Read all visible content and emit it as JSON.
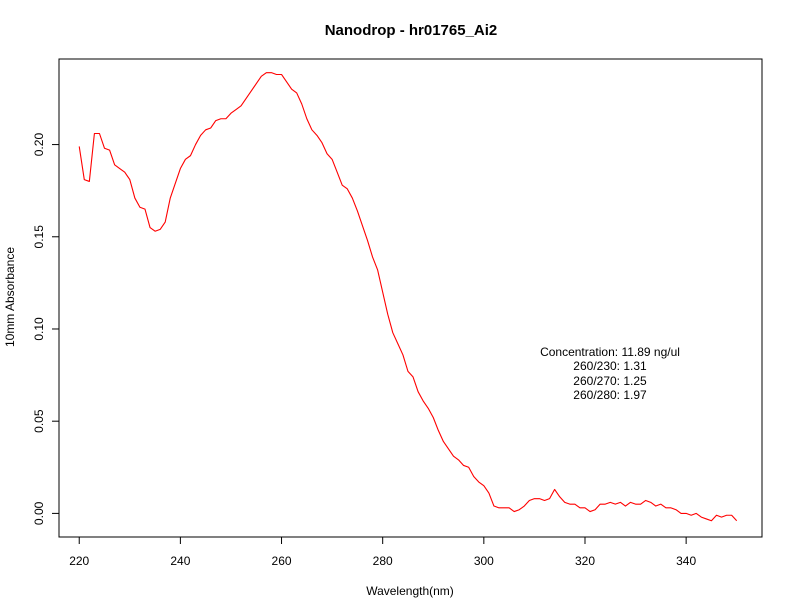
{
  "chart_data": {
    "type": "line",
    "title": "Nanodrop - hr01765_Ai2",
    "xlabel": "Wavelength(nm)",
    "ylabel": "10mm Absorbance",
    "xlim": [
      216,
      355
    ],
    "ylim": [
      -0.0128,
      0.2464
    ],
    "x_ticks": [
      220,
      240,
      260,
      280,
      300,
      320,
      340
    ],
    "x_tick_labels": [
      "220",
      "240",
      "260",
      "280",
      "300",
      "320",
      "340"
    ],
    "y_ticks": [
      0.0,
      0.05,
      0.1,
      0.15,
      0.2
    ],
    "y_tick_labels": [
      "0.00",
      "0.05",
      "0.10",
      "0.15",
      "0.20"
    ],
    "grid": false,
    "series": [
      {
        "color": "#ff0000",
        "x": [
          220,
          221,
          222,
          223,
          224,
          225,
          226,
          227,
          228,
          229,
          230,
          231,
          232,
          233,
          234,
          235,
          236,
          237,
          238,
          239,
          240,
          241,
          242,
          243,
          244,
          245,
          246,
          247,
          248,
          249,
          250,
          251,
          252,
          253,
          254,
          255,
          256,
          257,
          258,
          259,
          260,
          261,
          262,
          263,
          264,
          265,
          266,
          267,
          268,
          269,
          270,
          271,
          272,
          273,
          274,
          275,
          276,
          277,
          278,
          279,
          280,
          281,
          282,
          283,
          284,
          285,
          286,
          287,
          288,
          289,
          290,
          291,
          292,
          293,
          294,
          295,
          296,
          297,
          298,
          299,
          300,
          301,
          302,
          303,
          304,
          305,
          306,
          307,
          308,
          309,
          310,
          311,
          312,
          313,
          314,
          315,
          316,
          317,
          318,
          319,
          320,
          321,
          322,
          323,
          324,
          325,
          326,
          327,
          328,
          329,
          330,
          331,
          332,
          333,
          334,
          335,
          336,
          337,
          338,
          339,
          340,
          341,
          342,
          343,
          344,
          345,
          346,
          347,
          348,
          349,
          350
        ],
        "values": [
          0.199,
          0.181,
          0.18,
          0.206,
          0.206,
          0.198,
          0.197,
          0.189,
          0.187,
          0.185,
          0.181,
          0.171,
          0.166,
          0.165,
          0.155,
          0.153,
          0.154,
          0.158,
          0.171,
          0.179,
          0.187,
          0.192,
          0.194,
          0.2,
          0.205,
          0.208,
          0.209,
          0.213,
          0.214,
          0.214,
          0.217,
          0.219,
          0.221,
          0.225,
          0.229,
          0.233,
          0.237,
          0.239,
          0.239,
          0.238,
          0.238,
          0.234,
          0.23,
          0.228,
          0.222,
          0.214,
          0.208,
          0.205,
          0.201,
          0.195,
          0.192,
          0.185,
          0.178,
          0.176,
          0.171,
          0.164,
          0.156,
          0.148,
          0.139,
          0.132,
          0.12,
          0.108,
          0.098,
          0.092,
          0.086,
          0.077,
          0.074,
          0.066,
          0.061,
          0.057,
          0.052,
          0.045,
          0.039,
          0.035,
          0.031,
          0.029,
          0.026,
          0.025,
          0.02,
          0.017,
          0.015,
          0.011,
          0.004,
          0.003,
          0.003,
          0.003,
          0.001,
          0.002,
          0.004,
          0.007,
          0.008,
          0.008,
          0.007,
          0.008,
          0.013,
          0.009,
          0.006,
          0.005,
          0.005,
          0.003,
          0.003,
          0.001,
          0.002,
          0.005,
          0.005,
          0.006,
          0.005,
          0.006,
          0.004,
          0.006,
          0.005,
          0.005,
          0.007,
          0.006,
          0.004,
          0.005,
          0.003,
          0.003,
          0.002,
          0.0,
          0.0,
          -0.001,
          0.0,
          -0.002,
          -0.003,
          -0.004,
          -0.001,
          -0.002,
          -0.001,
          -0.001,
          -0.004
        ]
      }
    ],
    "annotations": [
      "Concentration: 11.89 ng/ul",
      "260/230: 1.31",
      "260/270: 1.25",
      "260/280: 1.97"
    ]
  }
}
